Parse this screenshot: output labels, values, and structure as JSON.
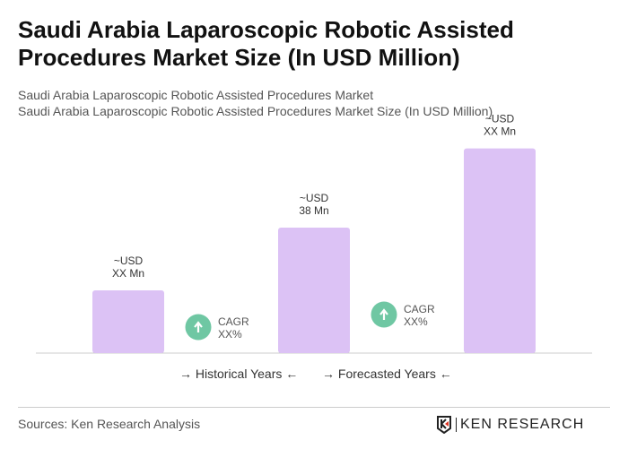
{
  "title": "Saudi Arabia Laparoscopic Robotic Assisted Procedures Market Size (In USD Million)",
  "subtitle1": "Saudi Arabia Laparoscopic Robotic Assisted Procedures Market",
  "subtitle2": "Saudi Arabia Laparoscopic Robotic Assisted Procedures Market Size (In USD Million)",
  "chart_data": {
    "type": "bar",
    "categories": [
      "",
      "",
      ""
    ],
    "values": [
      19,
      38,
      62
    ],
    "data_labels": [
      [
        "~USD",
        "XX Mn"
      ],
      [
        "~USD",
        "38 Mn"
      ],
      [
        "~USD",
        "XX Mn"
      ]
    ],
    "bar_color": "#dcc2f5",
    "cagr": [
      {
        "label": "CAGR",
        "value": "XX%"
      },
      {
        "label": "CAGR",
        "value": "XX%"
      }
    ],
    "cagr_color": "#6fc7a3",
    "grid": false
  },
  "legend": {
    "historical": "Historical Years",
    "forecasted": "Forecasted Years"
  },
  "source": "Sources: Ken Research Analysis",
  "logo_text": "KEN RESEARCH"
}
